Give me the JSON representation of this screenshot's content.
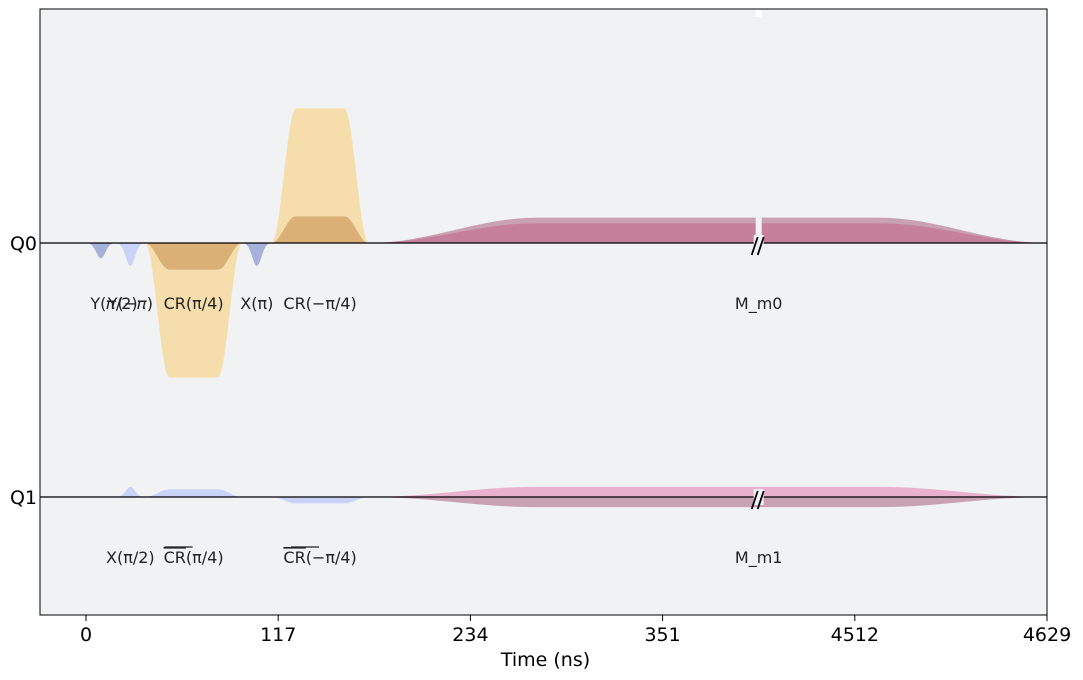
{
  "chart_data": {
    "type": "area",
    "title": "",
    "xlabel": "Time (ns)",
    "ylabel": "",
    "background_color": "#f1f2f4",
    "grid": false,
    "x_ticks": [
      "0",
      "117",
      "234",
      "351",
      "4512",
      "4629"
    ],
    "axis_break": {
      "from_ns": 351,
      "to_ns": 4512
    },
    "channels": [
      {
        "name": "Q0",
        "baseline": 0
      },
      {
        "name": "Q1",
        "baseline": -1
      }
    ],
    "colors": {
      "y_pulse": "#a5b1d8",
      "y_minus_pulse": "#c9d3f7",
      "x_pulse": "#a5b1d8",
      "cr_outer": "#f5deac",
      "cr_inner": "#dab077",
      "meas_q0_outer": "#c9a2b1",
      "meas_q0_inner": "#c7809b",
      "meas_q1_outer": "#e8b1cd",
      "meas_q1_inner": "#c9a2b1",
      "q1_drive": "#c9d3f7",
      "q1_cr": "#c9d3f7"
    },
    "pulses": [
      {
        "channel": "Q0",
        "label": "Y(𝜋/2)",
        "start_ns": 0,
        "end_ns": 18,
        "kind": "gaussian",
        "amp": -0.06,
        "color_key": "y_pulse"
      },
      {
        "channel": "Q0",
        "label": "Y(−𝜋)",
        "start_ns": 18,
        "end_ns": 36,
        "kind": "gaussian",
        "amp": -0.09,
        "color_key": "y_minus_pulse"
      },
      {
        "channel": "Q0",
        "label": "CR(π/4)",
        "start_ns": 36,
        "end_ns": 95,
        "kind": "flat-top",
        "amp": -0.53,
        "inner_amp": -0.105,
        "color_key": "cr_outer",
        "inner_color_key": "cr_inner"
      },
      {
        "channel": "Q0",
        "label": "X(π)",
        "start_ns": 95,
        "end_ns": 113,
        "kind": "gaussian",
        "amp": -0.09,
        "color_key": "x_pulse"
      },
      {
        "channel": "Q0",
        "label": "CR(−π/4)",
        "start_ns": 113,
        "end_ns": 172,
        "kind": "flat-top",
        "amp": 0.53,
        "inner_amp": 0.105,
        "color_key": "cr_outer",
        "inner_color_key": "cr_inner"
      },
      {
        "channel": "Q0",
        "label": "M_m0",
        "start_ns": 172,
        "end_ns": 4629,
        "kind": "flat-top",
        "amp": 0.1,
        "inner_amp": 0.078,
        "color_key": "meas_q0_outer",
        "inner_color_key": "meas_q0_inner"
      },
      {
        "channel": "Q1",
        "label": "X(π/2)",
        "start_ns": 18,
        "end_ns": 36,
        "kind": "gaussian",
        "amp": 0.04,
        "color_key": "q1_drive"
      },
      {
        "channel": "Q1",
        "label": "CR̄(π/4)",
        "label_base": "CR",
        "label_suffix": "(π/4)",
        "start_ns": 36,
        "end_ns": 95,
        "kind": "flat-top",
        "amp": 0.03,
        "color_key": "q1_cr"
      },
      {
        "channel": "Q1",
        "label": "CR̄(−π/4)",
        "label_base": "CR",
        "label_suffix": "(−π/4)",
        "start_ns": 113,
        "end_ns": 172,
        "kind": "flat-top",
        "amp": -0.025,
        "color_key": "q1_cr"
      },
      {
        "channel": "Q1",
        "label": "M_m1",
        "start_ns": 172,
        "end_ns": 4629,
        "kind": "flat-top",
        "amp": 0.04,
        "inner_amp": -0.04,
        "color_key": "meas_q1_outer",
        "inner_color_key": "meas_q1_inner"
      }
    ]
  }
}
